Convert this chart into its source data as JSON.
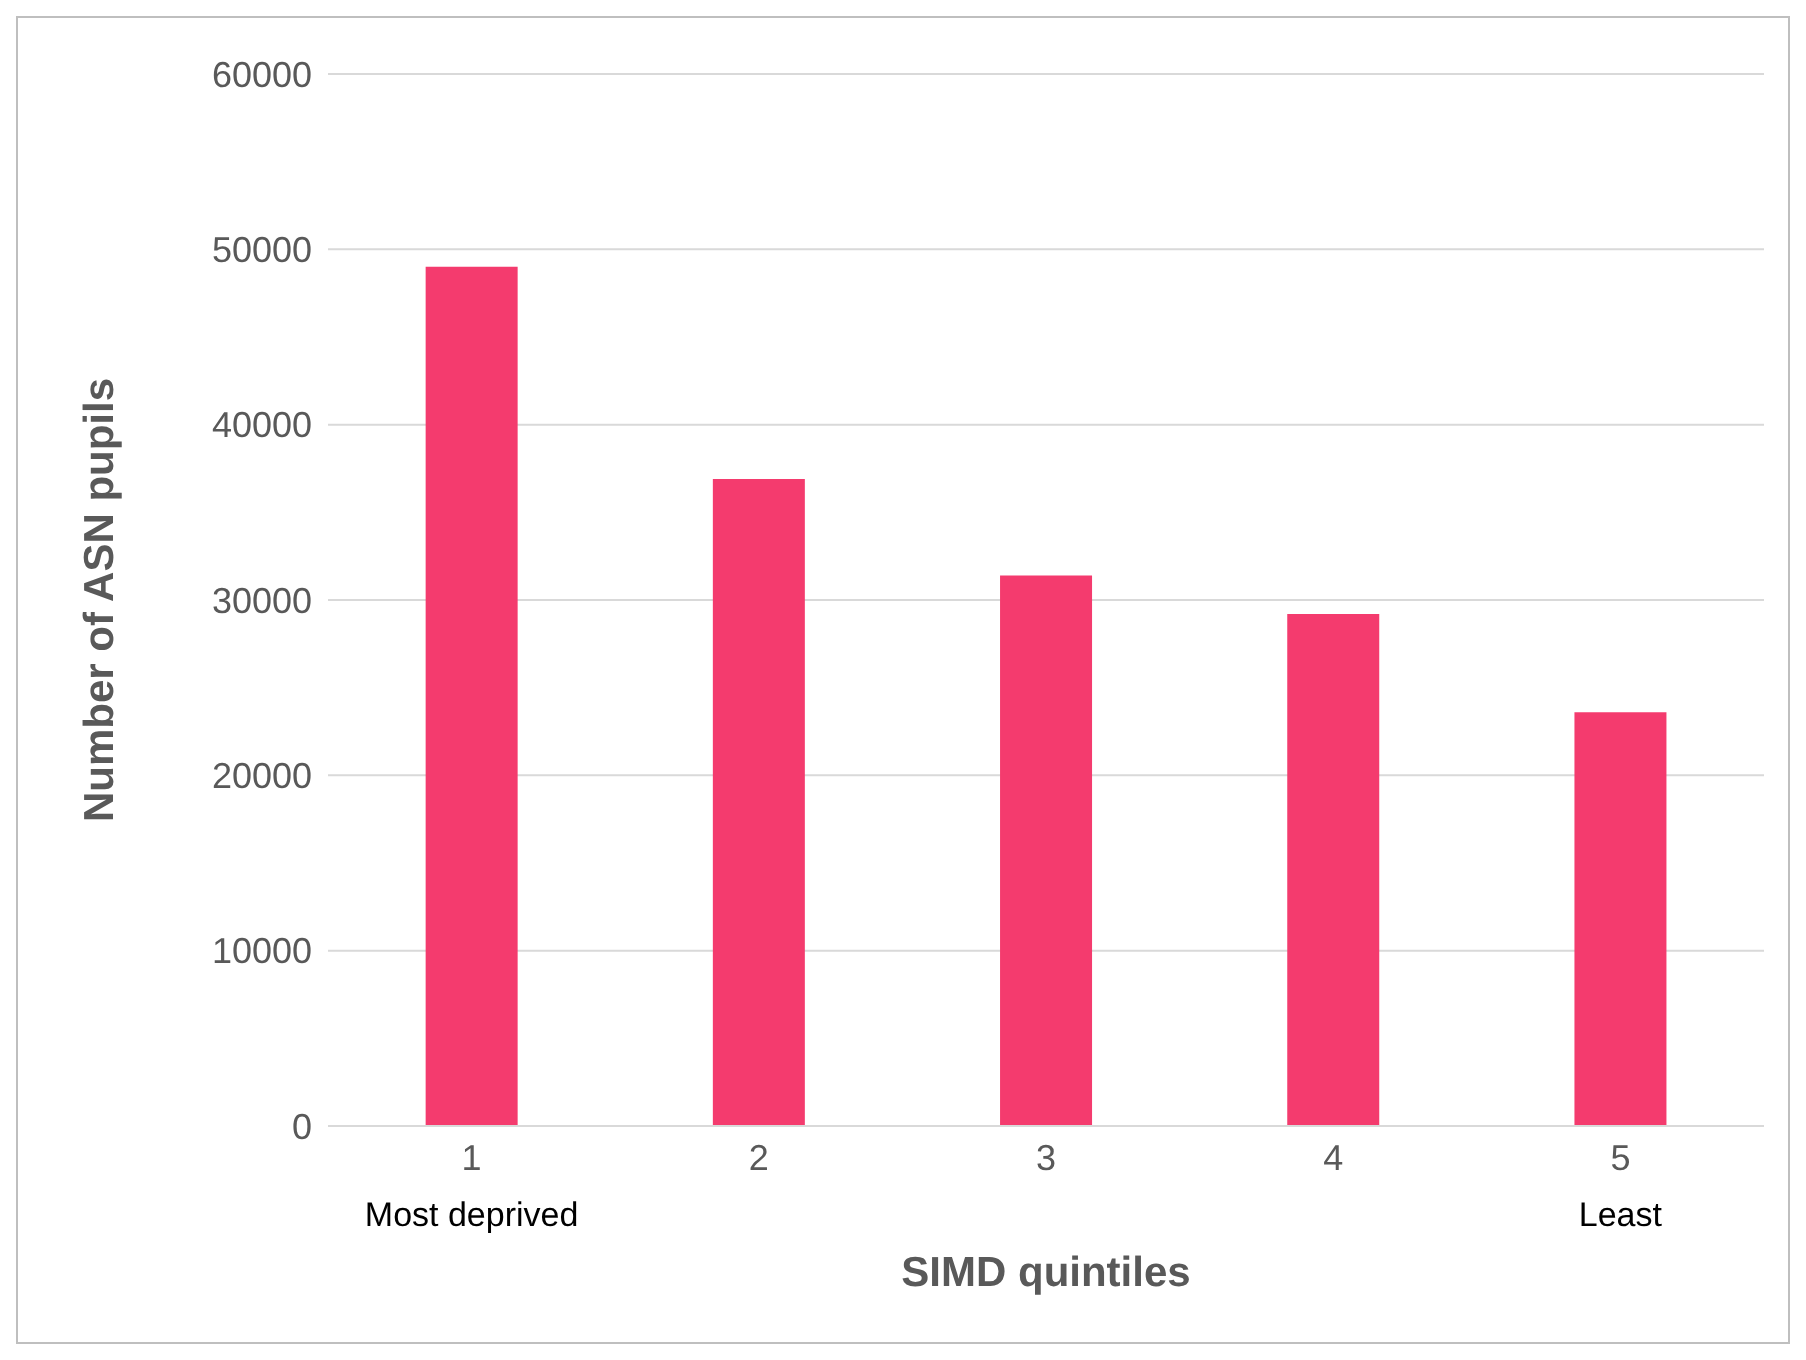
{
  "chart_data": {
    "type": "bar",
    "xlabel": "SIMD quintiles",
    "ylabel": "Number of ASN pupils",
    "categories": [
      "1\nMost deprived",
      "2",
      "3",
      "4",
      "5\nLeast"
    ],
    "values": [
      49000,
      36900,
      31400,
      29200,
      23600
    ],
    "color": "#f43b6e",
    "ylim": [
      0,
      60000
    ],
    "yticks": [
      0,
      10000,
      20000,
      30000,
      40000,
      50000,
      60000
    ],
    "grid": "y",
    "legend": false
  }
}
